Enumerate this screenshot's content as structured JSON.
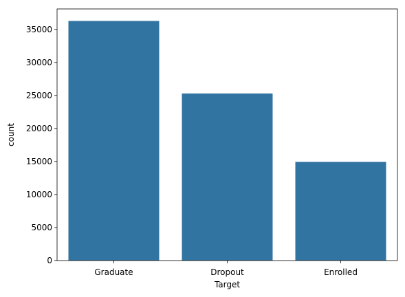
{
  "chart_data": {
    "type": "bar",
    "categories": [
      "Graduate",
      "Dropout",
      "Enrolled"
    ],
    "values": [
      36282,
      25296,
      14940
    ],
    "xlabel": "Target",
    "ylabel": "count",
    "ylim": [
      0,
      38100
    ],
    "yticks": [
      0,
      5000,
      10000,
      15000,
      20000,
      25000,
      30000,
      35000
    ],
    "bar_color": "#3274a1",
    "grid": false
  }
}
